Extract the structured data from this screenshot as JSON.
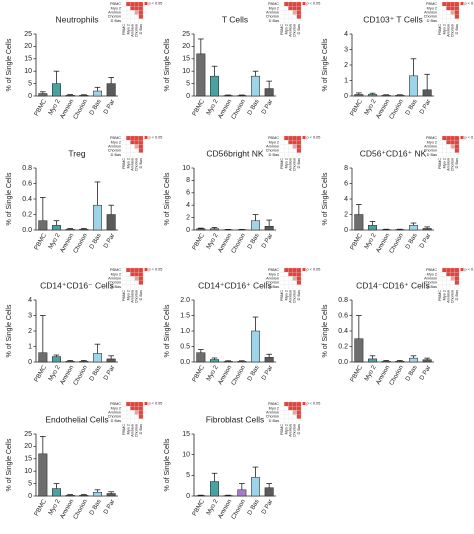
{
  "inset_labels": [
    "PBMC",
    "Myo 2",
    "Amnion",
    "Chorion",
    "D Bas"
  ],
  "inset_legend": "p < 0.05",
  "chart_data": [
    {
      "type": "bar",
      "title": "Neutrophils",
      "y_label": "% of Single Cells",
      "categories": [
        "PBMC",
        "Myo 2",
        "Amnion",
        "Chorion",
        "D Bas",
        "D Par"
      ],
      "values": [
        1,
        5,
        0.3,
        0.3,
        2,
        5
      ],
      "errors": [
        0.7,
        5,
        0.3,
        0.2,
        1.5,
        2.5
      ],
      "colors": [
        "#6d6d6d",
        "#4aa3a3",
        "#9a9a9a",
        "#a77bc9",
        "#9fd3ea",
        "#5a5a5a"
      ],
      "ylim": [
        0,
        25
      ],
      "yticks": [
        0,
        5,
        10,
        15,
        20,
        25
      ]
    },
    {
      "type": "bar",
      "title": "T Cells",
      "y_label": "% of Single Cells",
      "categories": [
        "PBMC",
        "Myo 2",
        "Amnion",
        "Chorion",
        "D Bas",
        "D Par"
      ],
      "values": [
        17,
        8,
        0.2,
        0.2,
        8,
        3
      ],
      "errors": [
        6,
        4,
        0.2,
        0.2,
        2,
        3
      ],
      "colors": [
        "#6d6d6d",
        "#4aa3a3",
        "#9a9a9a",
        "#a77bc9",
        "#9fd3ea",
        "#5a5a5a"
      ],
      "ylim": [
        0,
        25
      ],
      "yticks": [
        0,
        5,
        10,
        15,
        20,
        25
      ]
    },
    {
      "type": "bar",
      "title": "CD103⁺ T Cells",
      "y_label": "% of Single Cells",
      "categories": [
        "PBMC",
        "Myo 2",
        "Amnion",
        "Chorion",
        "D Bas",
        "D Par"
      ],
      "values": [
        0.1,
        0.1,
        0.05,
        0.05,
        1.3,
        0.4
      ],
      "errors": [
        0.1,
        0.08,
        0.03,
        0.03,
        1.1,
        1
      ],
      "colors": [
        "#6d6d6d",
        "#4aa3a3",
        "#9a9a9a",
        "#a77bc9",
        "#9fd3ea",
        "#5a5a5a"
      ],
      "ylim": [
        0,
        4
      ],
      "yticks": [
        0,
        1,
        2,
        3,
        4
      ]
    },
    {
      "type": "bar",
      "title": "Treg",
      "y_label": "% of Single Cells",
      "categories": [
        "PBMC",
        "Myo 2",
        "Amnion",
        "Chorion",
        "D Bas",
        "D Par"
      ],
      "values": [
        0.12,
        0.06,
        0.01,
        0.01,
        0.32,
        0.2
      ],
      "errors": [
        0.3,
        0.06,
        0.01,
        0.01,
        0.3,
        0.12
      ],
      "colors": [
        "#6d6d6d",
        "#4aa3a3",
        "#9a9a9a",
        "#a77bc9",
        "#9fd3ea",
        "#5a5a5a"
      ],
      "ylim": [
        0,
        0.8
      ],
      "yticks": [
        {
          "value": 0,
          "label": "0.0"
        },
        0.2,
        0.4,
        0.6,
        0.8
      ]
    },
    {
      "type": "bar",
      "title": "CD56bright NK",
      "y_label": "% of Single Cells",
      "categories": [
        "PBMC",
        "Myo 2",
        "Amnion",
        "Chorion",
        "D Bas",
        "D Par"
      ],
      "values": [
        0.2,
        0.2,
        0.05,
        0.05,
        1.5,
        0.6
      ],
      "errors": [
        0.1,
        0.2,
        0.05,
        0.05,
        1,
        1
      ],
      "colors": [
        "#6d6d6d",
        "#4aa3a3",
        "#9a9a9a",
        "#a77bc9",
        "#9fd3ea",
        "#5a5a5a"
      ],
      "ylim": [
        0,
        10
      ],
      "yticks": [
        0,
        2,
        4,
        6,
        8,
        10
      ]
    },
    {
      "type": "bar",
      "title": "CD56⁺CD16⁺ NK",
      "y_label": "% of Single Cells",
      "categories": [
        "PBMC",
        "Myo 2",
        "Amnion",
        "Chorion",
        "D Bas",
        "D Par"
      ],
      "values": [
        2,
        0.6,
        0.05,
        0.05,
        0.6,
        0.2
      ],
      "errors": [
        1.3,
        0.5,
        0.05,
        0.05,
        0.3,
        0.2
      ],
      "colors": [
        "#6d6d6d",
        "#4aa3a3",
        "#9a9a9a",
        "#a77bc9",
        "#9fd3ea",
        "#5a5a5a"
      ],
      "ylim": [
        0,
        8
      ],
      "yticks": [
        0,
        2,
        4,
        6,
        8
      ]
    },
    {
      "type": "bar",
      "title": "CD14⁺CD16⁻ Cells",
      "y_label": "% of Single Cells",
      "categories": [
        "PBMC",
        "Myo 2",
        "Amnion",
        "Chorion",
        "D Bas",
        "D Par"
      ],
      "values": [
        0.6,
        0.35,
        0.05,
        0.05,
        0.55,
        0.2
      ],
      "errors": [
        2.4,
        0.1,
        0.05,
        0.05,
        0.6,
        0.2
      ],
      "colors": [
        "#6d6d6d",
        "#4aa3a3",
        "#9a9a9a",
        "#a77bc9",
        "#9fd3ea",
        "#5a5a5a"
      ],
      "ylim": [
        0,
        4
      ],
      "yticks": [
        0,
        1,
        2,
        3,
        4
      ]
    },
    {
      "type": "bar",
      "title": "CD14⁺CD16⁺ Cells",
      "y_label": "% of Single Cells",
      "categories": [
        "PBMC",
        "Myo 2",
        "Amnion",
        "Chorion",
        "D Bas",
        "D Par"
      ],
      "values": [
        0.3,
        0.08,
        0.02,
        0.02,
        1.0,
        0.15
      ],
      "errors": [
        0.1,
        0.05,
        0.02,
        0.02,
        0.45,
        0.1
      ],
      "colors": [
        "#6d6d6d",
        "#4aa3a3",
        "#9a9a9a",
        "#a77bc9",
        "#9fd3ea",
        "#5a5a5a"
      ],
      "ylim": [
        0,
        2
      ],
      "yticks": [
        {
          "value": 0,
          "label": "0.0"
        },
        0.5,
        {
          "value": 1,
          "label": "1.0"
        },
        1.5,
        {
          "value": 2,
          "label": "2.0"
        }
      ]
    },
    {
      "type": "bar",
      "title": "CD14⁻CD16⁺ Cells",
      "y_label": "% of Single Cells",
      "categories": [
        "PBMC",
        "Myo 2",
        "Amnion",
        "Chorion",
        "D Bas",
        "D Par"
      ],
      "values": [
        0.3,
        0.04,
        0.01,
        0.01,
        0.05,
        0.03
      ],
      "errors": [
        0.3,
        0.04,
        0.01,
        0.01,
        0.03,
        0.02
      ],
      "colors": [
        "#6d6d6d",
        "#4aa3a3",
        "#9a9a9a",
        "#a77bc9",
        "#9fd3ea",
        "#5a5a5a"
      ],
      "ylim": [
        0,
        0.8
      ],
      "yticks": [
        {
          "value": 0,
          "label": "0.0"
        },
        0.2,
        0.4,
        0.6,
        0.8
      ]
    },
    {
      "type": "bar",
      "title": "Endothelial Cells",
      "y_label": "% of Single Cells",
      "categories": [
        "PBMC",
        "Myo 2",
        "Amnion",
        "Chorion",
        "D Bas",
        "D Par"
      ],
      "values": [
        17,
        3,
        0.3,
        0.3,
        1.5,
        1
      ],
      "errors": [
        7,
        2,
        0.3,
        0.3,
        1,
        0.7
      ],
      "colors": [
        "#6d6d6d",
        "#4aa3a3",
        "#9a9a9a",
        "#a77bc9",
        "#9fd3ea",
        "#5a5a5a"
      ],
      "ylim": [
        0,
        25
      ],
      "yticks": [
        0,
        5,
        10,
        15,
        20,
        25
      ]
    },
    {
      "type": "bar",
      "title": "Fibroblast Cells",
      "y_label": "% of Single Cells",
      "categories": [
        "PBMC",
        "Myo 2",
        "Amnion",
        "Chorion",
        "D Bas",
        "D Par"
      ],
      "values": [
        0.1,
        3.5,
        0.1,
        1.5,
        4.5,
        2
      ],
      "errors": [
        0.1,
        2,
        0.1,
        1.5,
        2.5,
        1
      ],
      "colors": [
        "#6d6d6d",
        "#4aa3a3",
        "#9a9a9a",
        "#a77bc9",
        "#9fd3ea",
        "#5a5a5a"
      ],
      "ylim": [
        0,
        15
      ],
      "yticks": [
        0,
        5,
        10,
        15
      ]
    }
  ]
}
